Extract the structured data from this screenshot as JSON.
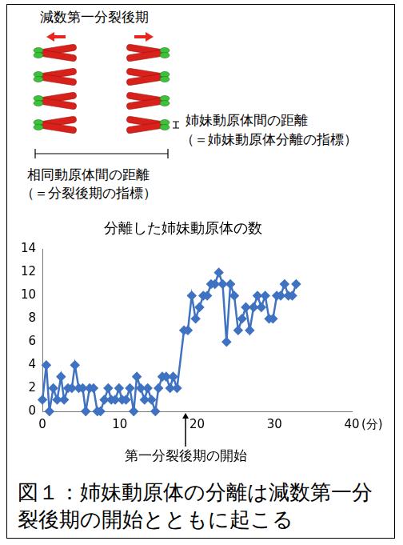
{
  "diagram": {
    "title": "減数第一分裂後期",
    "sister_label": "姉妹動原体間の距離",
    "sister_note": "（＝姉妹動原体分離の指標）",
    "homolog_label": "相同動原体間の距離",
    "homolog_note": "（＝分裂後期の指標）"
  },
  "chart_data": {
    "type": "line",
    "title": "分離した姉妹動原体の数",
    "x_label": "(分)",
    "x": [
      0,
      0.5,
      0.9,
      1.4,
      1.9,
      2.4,
      2.8,
      3.3,
      3.8,
      4.2,
      4.7,
      5.2,
      5.6,
      6.1,
      6.6,
      7.1,
      7.5,
      8.0,
      8.5,
      8.9,
      9.4,
      9.9,
      10.3,
      10.8,
      11.3,
      11.8,
      12.2,
      12.7,
      13.2,
      13.6,
      14.1,
      14.6,
      15.0,
      15.5,
      16.0,
      16.5,
      16.9,
      17.4,
      18.3,
      18.8,
      19.3,
      19.8,
      20.3,
      20.8,
      21.3,
      21.8,
      22.3,
      22.8,
      23.3,
      23.8,
      24.3,
      24.8,
      25.3,
      25.8,
      26.3,
      26.8,
      27.3,
      27.8,
      28.3,
      28.8,
      29.3,
      29.8,
      30.3,
      30.8,
      31.3,
      31.8,
      32.3,
      32.8
    ],
    "values": [
      1,
      4,
      0,
      2,
      1,
      3,
      1,
      2,
      2,
      4,
      2,
      2,
      0,
      2,
      2,
      0,
      0,
      1,
      2,
      1,
      1,
      2,
      1,
      1,
      2,
      0,
      3,
      2,
      1,
      2,
      1,
      0,
      2,
      3,
      3,
      2,
      3,
      2,
      7,
      7,
      10,
      8,
      9,
      10,
      10,
      11,
      11,
      12,
      11,
      6,
      11,
      10,
      7,
      8,
      9,
      7,
      9,
      10,
      9,
      10,
      8,
      8,
      10,
      10,
      11,
      10,
      10,
      11
    ],
    "color": "#3f72c0",
    "marker": "diamond",
    "grid": false,
    "xlim": [
      0,
      40
    ],
    "xticks": [
      0,
      10,
      20,
      30,
      40
    ],
    "ylim": [
      0,
      14
    ],
    "yticks": [
      0,
      2,
      4,
      6,
      8,
      10,
      12,
      14
    ],
    "annotations": [
      {
        "text": "第一分裂後期の開始",
        "x": 18.5
      }
    ]
  },
  "caption": "図１：姉妹動原体の分離は減数第一分裂後期の開始とともに起こる"
}
